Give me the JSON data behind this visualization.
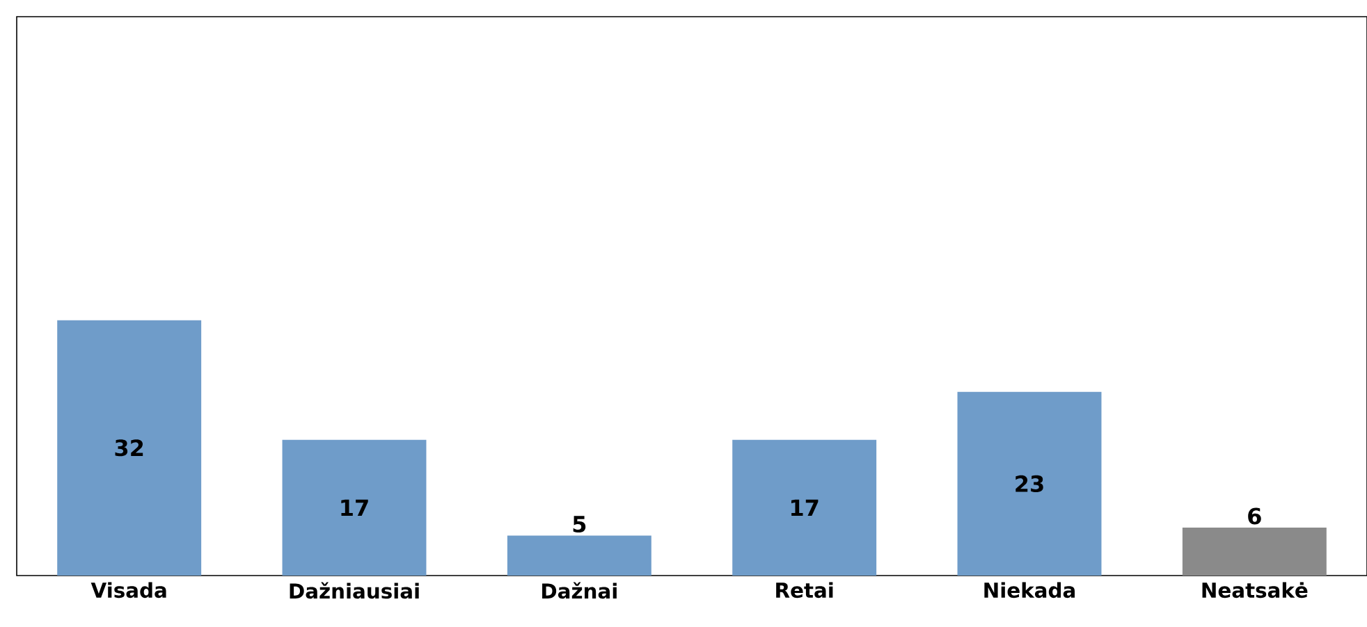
{
  "chart_data": {
    "type": "bar",
    "categories": [
      "Visada",
      "Dažniausiai",
      "Dažnai",
      "Retai",
      "Niekada",
      "Neatsakė"
    ],
    "values": [
      32,
      17,
      5,
      17,
      23,
      6
    ],
    "colors": [
      "#6f9cc9",
      "#6f9cc9",
      "#6f9cc9",
      "#6f9cc9",
      "#6f9cc9",
      "#8a8a8a"
    ],
    "ylim": [
      0,
      70
    ],
    "data_labels": true,
    "relative": false
  }
}
